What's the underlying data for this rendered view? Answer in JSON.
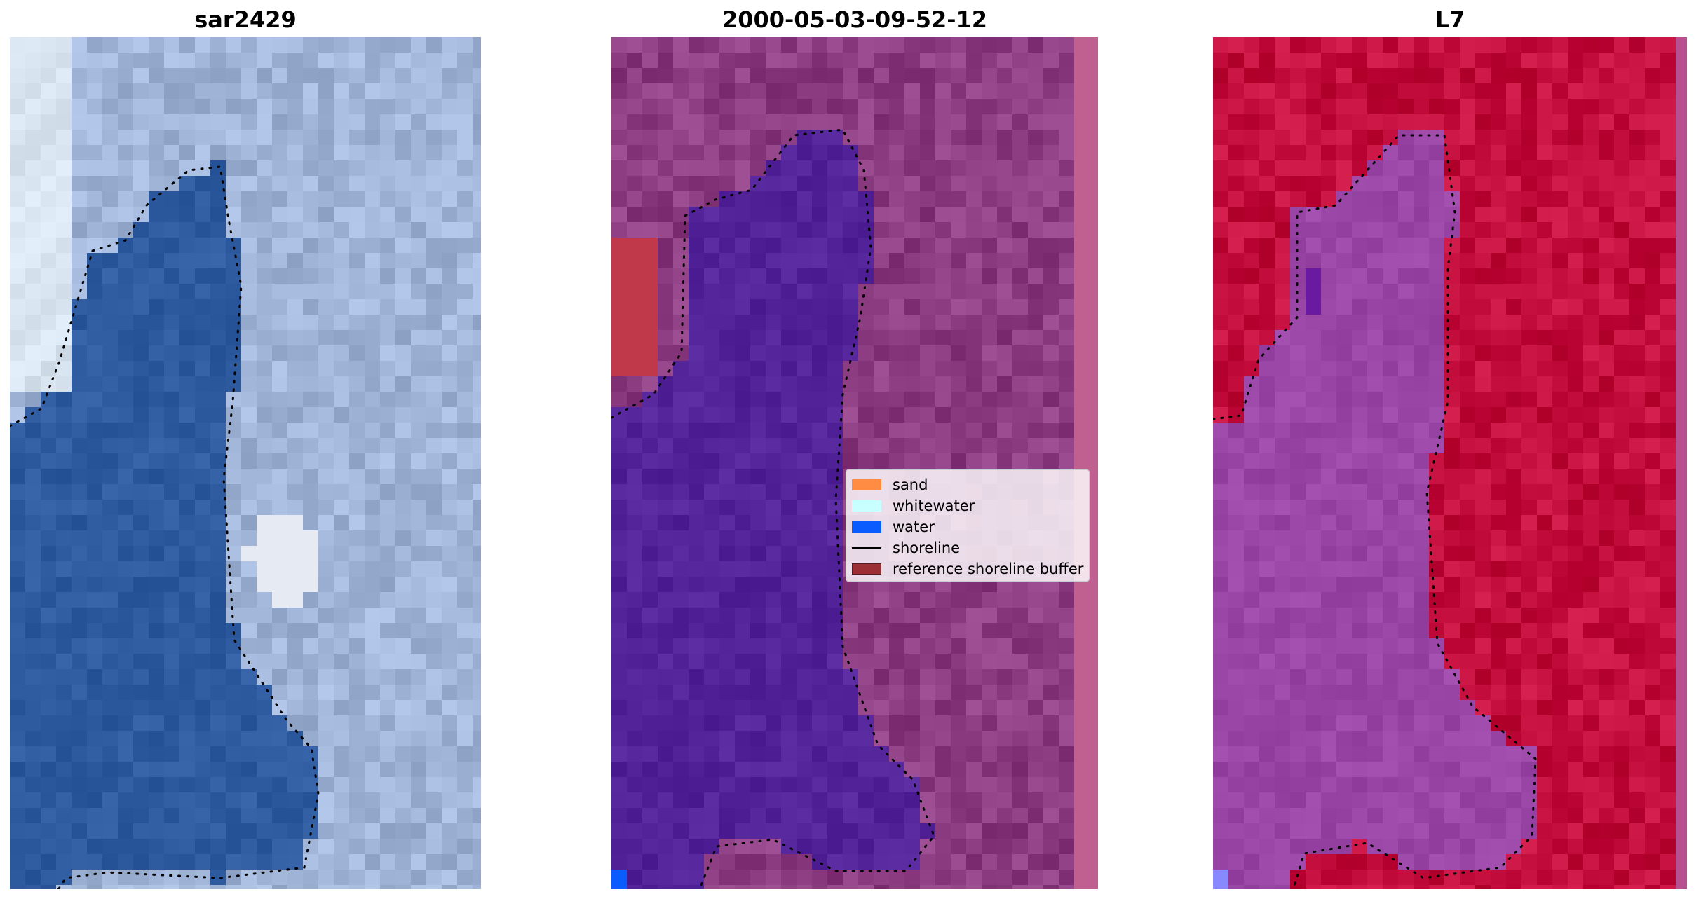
{
  "panels": [
    {
      "id": "rgb",
      "title": "sar2429"
    },
    {
      "id": "classified",
      "title": "2000-05-03-09-52-12"
    },
    {
      "id": "index",
      "title": "L7"
    }
  ],
  "legend": {
    "items": [
      {
        "label": "sand",
        "kind": "patch",
        "color": "#ff8c42"
      },
      {
        "label": "whitewater",
        "kind": "patch",
        "color": "#c8ffff"
      },
      {
        "label": "water",
        "kind": "patch",
        "color": "#0a5cff"
      },
      {
        "label": "shoreline",
        "kind": "line",
        "color": "#000000"
      },
      {
        "label": "reference shoreline buffer",
        "kind": "patch",
        "color": "#9b2f35"
      }
    ]
  },
  "colors": {
    "water_rgb": "#2e5aa0",
    "land_rgb": "#9fb4d6",
    "water_class": "#53239a",
    "land_class": "#8c3c80",
    "buffer_class": "#c0394a",
    "water_index": "#9a46a6",
    "land_index": "#c20d3c"
  }
}
